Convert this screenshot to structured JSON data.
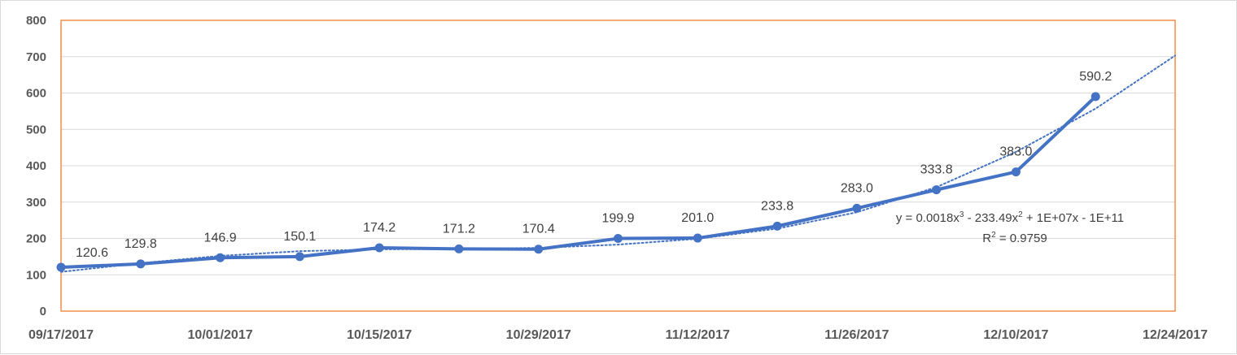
{
  "chart_data": {
    "type": "line",
    "title": "",
    "xlabel": "",
    "ylabel": "",
    "ylim": [
      0,
      800
    ],
    "y_ticks": [
      "0",
      "100",
      "200",
      "300",
      "400",
      "500",
      "600",
      "700",
      "800"
    ],
    "x_axis": {
      "type": "date",
      "range": [
        "09/17/2017",
        "12/24/2017"
      ],
      "tick_labels": [
        "09/17/2017",
        "10/01/2017",
        "10/15/2017",
        "10/29/2017",
        "11/12/2017",
        "11/26/2017",
        "12/10/2017",
        "12/24/2017"
      ]
    },
    "grid": "horizontal",
    "plot_border_color": "#ED7D31",
    "series": [
      {
        "color": "#4472C4",
        "marker": "circle",
        "x": [
          "09/17/2017",
          "09/24/2017",
          "10/01/2017",
          "10/08/2017",
          "10/15/2017",
          "10/22/2017",
          "10/29/2017",
          "11/05/2017",
          "11/12/2017",
          "11/19/2017",
          "11/26/2017",
          "12/03/2017",
          "12/10/2017",
          "12/17/2017"
        ],
        "values": [
          120.6,
          129.8,
          146.9,
          150.1,
          174.2,
          171.2,
          170.4,
          199.9,
          201.0,
          233.8,
          283.0,
          333.8,
          383.0,
          590.2
        ],
        "data_labels": [
          "120.6",
          "129.8",
          "146.9",
          "150.1",
          "174.2",
          "171.2",
          "170.4",
          "199.9",
          "201.0",
          "233.8",
          "283.0",
          "333.8",
          "383.0",
          "590.2"
        ]
      }
    ],
    "trendline": {
      "type": "polynomial",
      "order": 3,
      "style": "dotted",
      "color": "#4472C4",
      "forward_to": "12/24/2017",
      "values": [
        108,
        132,
        152,
        165,
        170,
        171,
        174,
        183,
        199,
        227,
        272,
        341,
        438,
        557,
        703
      ],
      "x": [
        "09/17/2017",
        "09/24/2017",
        "10/01/2017",
        "10/08/2017",
        "10/15/2017",
        "10/22/2017",
        "10/29/2017",
        "11/05/2017",
        "11/12/2017",
        "11/19/2017",
        "11/26/2017",
        "12/03/2017",
        "12/10/2017",
        "12/17/2017",
        "12/24/2017"
      ],
      "equation_line1_parts": [
        "y = 0.0018x",
        "3",
        " - 233.49x",
        "2",
        " + 1E+07x - 1E+11"
      ],
      "r_squared_parts": [
        "R",
        "2",
        " = 0.9759"
      ]
    }
  }
}
